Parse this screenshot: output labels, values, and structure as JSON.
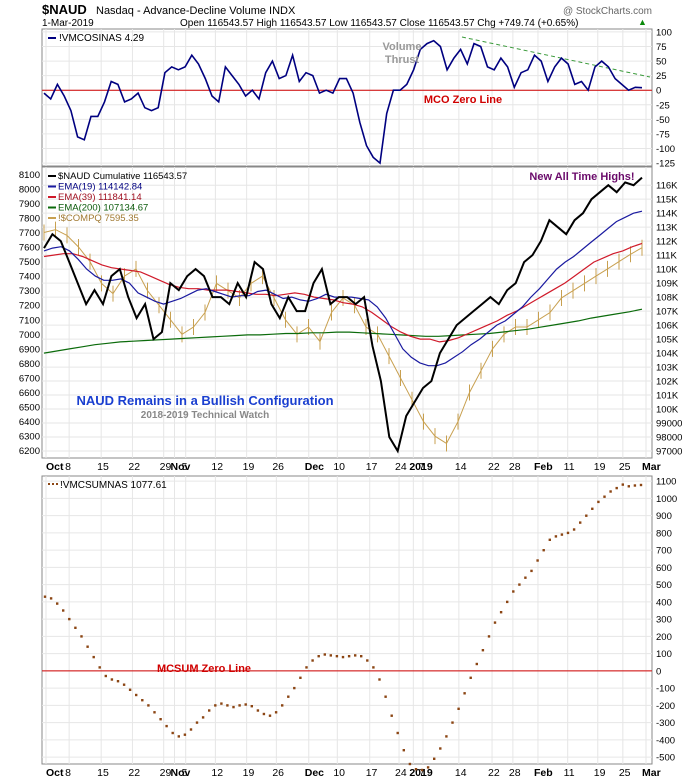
{
  "header": {
    "symbol": "$NAUD",
    "description": "Nasdaq - Advance-Decline Volume INDX",
    "date": "1-Mar-2019",
    "ohlc": "Open 116543.57  High 116543.57  Low 116543.57  Close 116543.57  Chg +749.74 (+0.65%)",
    "chg_arrow": "▲",
    "watermark": "@ StockCharts.com"
  },
  "colors": {
    "mco": "#000080",
    "naud": "#000000",
    "ema19": "#1a1aa0",
    "ema39": "#d01a2a",
    "ema200": "#0b6b0b",
    "compq": "#c8a050",
    "mcsum": "#8b4513",
    "zero_line": "#d00000",
    "trend_line": "#3a9a3a",
    "grid": "#e6e6e6"
  },
  "x_axis": {
    "labels": [
      "Oct",
      "8",
      "15",
      "22",
      "29",
      "Nov",
      "5",
      "12",
      "19",
      "26",
      "Dec",
      "10",
      "17",
      "24",
      "2019",
      "7",
      "14",
      "22",
      "28",
      "Feb",
      "11",
      "19",
      "25",
      "Mar"
    ]
  },
  "annotations": {
    "volume_thrust": "Volume Thrust",
    "mco_zero": "MCO Zero Line",
    "new_highs": "New All Time Highs!",
    "naud_config": "NAUD Remains in a Bullish Configuration",
    "tech_watch": "2018-2019 Technical Watch",
    "mcsum_zero": "MCSUM Zero Line"
  },
  "chart_data": [
    {
      "type": "line",
      "legend": [
        "!VMCOSINAS 4.29"
      ],
      "ylim": [
        -130,
        105
      ],
      "yticks": [
        100,
        75,
        50,
        25,
        0,
        -25,
        -50,
        -75,
        -100,
        -125
      ],
      "series": [
        {
          "name": "!VMCOSINAS",
          "values": [
            -5,
            -15,
            10,
            -10,
            -35,
            -80,
            -85,
            -45,
            -45,
            -20,
            15,
            10,
            -20,
            -15,
            -5,
            -30,
            -35,
            -30,
            30,
            40,
            35,
            40,
            60,
            45,
            20,
            -10,
            -20,
            40,
            25,
            10,
            -10,
            0,
            -15,
            30,
            50,
            20,
            25,
            60,
            15,
            30,
            25,
            -5,
            0,
            -5,
            20,
            20,
            -5,
            -55,
            -95,
            -115,
            -125,
            -40,
            0,
            0,
            10,
            35,
            70,
            80,
            85,
            75,
            35,
            55,
            70,
            45,
            80,
            75,
            40,
            35,
            55,
            40,
            5,
            30,
            35,
            60,
            50,
            15,
            40,
            55,
            45,
            10,
            15,
            0,
            40,
            50,
            40,
            20,
            10,
            0,
            5,
            4.29
          ]
        }
      ]
    },
    {
      "type": "line",
      "legend": [
        "$NAUD Cumulative 116543.57",
        "EMA(19) 114142.84",
        "EMA(39) 111841.14",
        "EMA(200) 107134.67",
        "!$COMPQ 7595.35"
      ],
      "ylim": [
        96500,
        117300
      ],
      "yticks": [
        116000,
        115000,
        114000,
        113000,
        112000,
        111000,
        110000,
        109000,
        108000,
        107000,
        106000,
        105000,
        104000,
        103000,
        102000,
        101000,
        100000,
        99000,
        98000,
        97000
      ],
      "series": [
        {
          "name": "$NAUD Cumulative",
          "values": [
            111500,
            112500,
            112000,
            110500,
            109000,
            107500,
            108500,
            107500,
            109500,
            110000,
            108000,
            106500,
            107500,
            105000,
            105500,
            109000,
            108500,
            109500,
            110000,
            109500,
            108000,
            108000,
            107500,
            109000,
            108000,
            110500,
            110000,
            107500,
            106500,
            108000,
            107000,
            107000,
            109000,
            110000,
            107500,
            108000,
            108000,
            107500,
            108000,
            104500,
            102000,
            98000,
            97000,
            99500,
            100500,
            101500,
            102000,
            104000,
            105000,
            106000,
            106500,
            107000,
            107500,
            108000,
            107500,
            108500,
            109000,
            110500,
            111000,
            112000,
            113500,
            113000,
            112500,
            113500,
            114000,
            115000,
            115500,
            116000,
            115500,
            116200,
            116000,
            116543.57
          ]
        },
        {
          "name": "EMA(19)",
          "values": [
            111300,
            111500,
            111600,
            111300,
            110700,
            110000,
            109500,
            109200,
            109200,
            109300,
            109000,
            108300,
            108000,
            107700,
            107500,
            107700,
            107900,
            108200,
            108500,
            108600,
            108400,
            108200,
            108000,
            108100,
            108100,
            108400,
            108500,
            108200,
            107900,
            108000,
            107800,
            107700,
            107900,
            108200,
            108000,
            108000,
            108000,
            107900,
            107800,
            107300,
            106500,
            105400,
            104300,
            103700,
            103300,
            103100,
            103100,
            103300,
            103700,
            104100,
            104600,
            105000,
            105500,
            106000,
            106300,
            106800,
            107300,
            108000,
            108600,
            109300,
            110000,
            110500,
            110900,
            111400,
            111900,
            112400,
            112900,
            113400,
            113700,
            114000,
            114142.84
          ]
        },
        {
          "name": "EMA(39)",
          "values": [
            110900,
            111000,
            111100,
            111100,
            110900,
            110600,
            110300,
            110100,
            110000,
            109900,
            109800,
            109500,
            109200,
            108900,
            108700,
            108600,
            108600,
            108500,
            108500,
            108500,
            108400,
            108300,
            108200,
            108200,
            108100,
            108200,
            108300,
            108200,
            108000,
            107900,
            107800,
            107600,
            107500,
            107300,
            106900,
            106400,
            105900,
            105500,
            105200,
            105000,
            105000,
            104800,
            104900,
            105100,
            105400,
            105700,
            106000,
            106300,
            106700,
            107000,
            107400,
            107800,
            108200,
            108600,
            109000,
            109500,
            110000,
            110500,
            110800,
            111100,
            111300,
            111600,
            111841.14
          ]
        },
        {
          "name": "EMA(200)",
          "values": [
            104000,
            104150,
            104300,
            104450,
            104600,
            104700,
            104800,
            104850,
            104900,
            104950,
            105000,
            105050,
            105100,
            105150,
            105200,
            105250,
            105300,
            105300,
            105350,
            105400,
            105400,
            105450,
            105450,
            105500,
            105500,
            105450,
            105400,
            105350,
            105300,
            105250,
            105200,
            105200,
            105250,
            105300,
            105350,
            105400,
            105500,
            105600,
            105700,
            105850,
            106000,
            106150,
            106300,
            106500,
            106650,
            106800,
            106950,
            107134.67
          ]
        },
        {
          "name": "!$COMPQ",
          "values": [
            7700,
            7720,
            7680,
            7600,
            7500,
            7350,
            7280,
            7400,
            7450,
            7300,
            7200,
            7100,
            7000,
            7050,
            7150,
            7350,
            7300,
            7250,
            7350,
            7400,
            7250,
            7100,
            7000,
            7050,
            6950,
            7150,
            7250,
            7200,
            7050,
            7000,
            6850,
            6700,
            6550,
            6400,
            6300,
            6250,
            6400,
            6600,
            6750,
            6900,
            7000,
            7050,
            7050,
            7100,
            7150,
            7250,
            7300,
            7350,
            7400,
            7450,
            7500,
            7550,
            7595.35
          ]
        }
      ]
    },
    {
      "type": "scatter",
      "legend": [
        "!VMCSUMNAS 1077.61"
      ],
      "ylim": [
        -540,
        1130
      ],
      "yticks": [
        1100,
        1000,
        900,
        800,
        700,
        600,
        500,
        400,
        300,
        200,
        100,
        0,
        -100,
        -200,
        -300,
        -400,
        -500
      ],
      "series": [
        {
          "name": "!VMCSUMNAS",
          "values": [
            430,
            420,
            390,
            350,
            300,
            250,
            200,
            140,
            80,
            20,
            -30,
            -50,
            -60,
            -80,
            -110,
            -140,
            -170,
            -200,
            -240,
            -280,
            -320,
            -360,
            -380,
            -370,
            -340,
            -300,
            -270,
            -230,
            -200,
            -190,
            -200,
            -210,
            -200,
            -195,
            -205,
            -230,
            -250,
            -260,
            -240,
            -200,
            -150,
            -100,
            -40,
            20,
            60,
            85,
            95,
            90,
            85,
            80,
            85,
            90,
            85,
            60,
            20,
            -50,
            -150,
            -260,
            -360,
            -460,
            -540,
            -570,
            -575,
            -560,
            -510,
            -450,
            -380,
            -300,
            -220,
            -130,
            -40,
            40,
            120,
            200,
            280,
            340,
            400,
            460,
            500,
            540,
            580,
            640,
            700,
            760,
            780,
            790,
            800,
            820,
            860,
            900,
            940,
            980,
            1010,
            1040,
            1060,
            1080,
            1070,
            1075,
            1077.61
          ]
        }
      ]
    }
  ]
}
